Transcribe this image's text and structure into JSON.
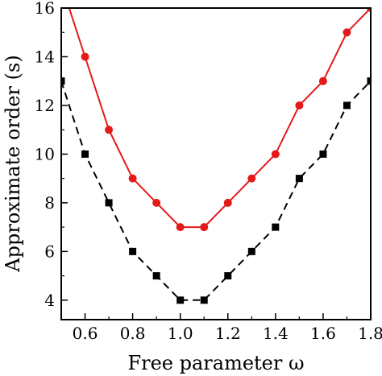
{
  "chart_data": {
    "type": "line",
    "xlabel": "Free parameter ω",
    "ylabel": "Approximate order (s)",
    "xlim": [
      0.5,
      1.8
    ],
    "ylim": [
      3.2,
      16
    ],
    "x_ticks": [
      0.6,
      0.8,
      1.0,
      1.2,
      1.4,
      1.6,
      1.8
    ],
    "x_tick_labels": [
      "0.6",
      "0.8",
      "1.0",
      "1.2",
      "1.4",
      "1.6",
      "1.8"
    ],
    "y_ticks": [
      4,
      6,
      8,
      10,
      12,
      14,
      16
    ],
    "y_tick_labels": [
      "4",
      "6",
      "8",
      "10",
      "12",
      "14",
      "16"
    ],
    "grid": false,
    "series": [
      {
        "color": "#e41a1a",
        "line_style": "solid",
        "marker": "circle",
        "x": [
          0.5,
          0.6,
          0.7,
          0.8,
          0.9,
          1.0,
          1.1,
          1.2,
          1.3,
          1.4,
          1.5,
          1.6,
          1.7,
          1.8
        ],
        "values": [
          17,
          14,
          11,
          9,
          8,
          7,
          7,
          8,
          9,
          10,
          12,
          13,
          15,
          16
        ]
      },
      {
        "color": "#000000",
        "line_style": "dashed",
        "marker": "square",
        "x": [
          0.5,
          0.6,
          0.7,
          0.8,
          0.9,
          1.0,
          1.1,
          1.2,
          1.3,
          1.4,
          1.5,
          1.6,
          1.7,
          1.8
        ],
        "values": [
          13,
          10,
          8,
          6,
          5,
          4,
          4,
          5,
          6,
          7,
          9,
          10,
          12,
          13
        ]
      }
    ]
  }
}
